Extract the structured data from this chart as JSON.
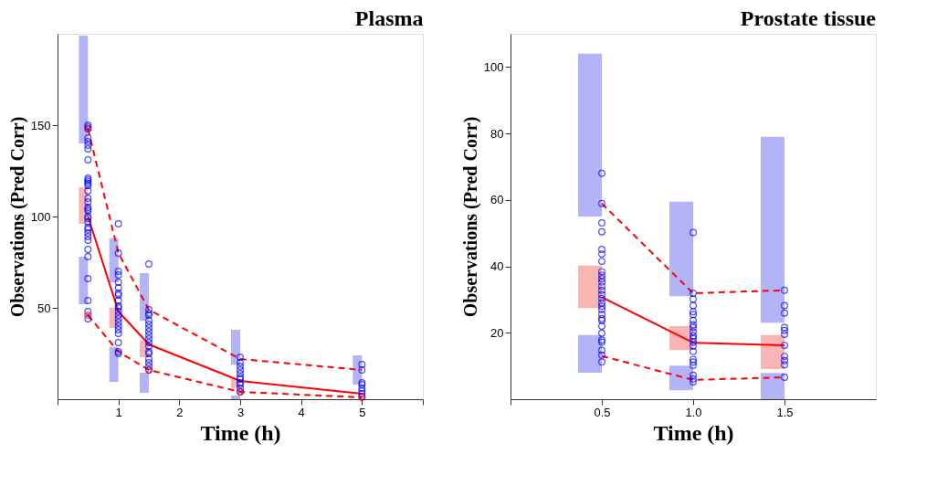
{
  "chart_data": [
    {
      "type": "line",
      "title": "Plasma",
      "xlabel": "Time (h)",
      "ylabel": "Observations (Pred Corr)",
      "xlim": [
        0,
        6
      ],
      "ylim": [
        0,
        200
      ],
      "xticks": [
        {
          "value": 0,
          "label": null
        },
        1,
        2,
        3,
        4,
        5,
        {
          "value": 6,
          "label": null
        }
      ],
      "yticks": [
        50,
        100,
        150
      ],
      "grid": false,
      "series": [
        {
          "type": "bar",
          "color": "#b3b3f8",
          "x": [
            0.5,
            1,
            1.5,
            3,
            5
          ],
          "base": [
            140,
            64,
            43,
            19,
            8
          ],
          "values": [
            59,
            24,
            26,
            19,
            16
          ]
        },
        {
          "type": "bar",
          "color": "#b3b3f8",
          "x": [
            0.5,
            1,
            1.5,
            3
          ],
          "base": [
            52,
            9.5,
            3.5,
            0
          ],
          "values": [
            26,
            19,
            11,
            2
          ]
        },
        {
          "type": "bar",
          "color": "#f9b4b4",
          "x": [
            0.5,
            1,
            1.5,
            3
          ],
          "base": [
            96,
            39,
            23,
            6
          ],
          "values": [
            20,
            11,
            9,
            5
          ]
        },
        {
          "color": "#ff0000",
          "line_style": "solid",
          "marker": "none",
          "x": [
            0.5,
            1,
            1.5,
            3,
            5
          ],
          "values": [
            100,
            48,
            30,
            10,
            3
          ]
        },
        {
          "color": "#ff0000",
          "line_style": "dashed",
          "marker": "none",
          "x": [
            0.5,
            1,
            1.5,
            3,
            5
          ],
          "values": [
            148,
            80,
            49,
            22,
            16
          ]
        },
        {
          "color": "#ff0000",
          "line_style": "dashed",
          "marker": "none",
          "x": [
            0.5,
            1,
            1.5,
            3,
            5
          ],
          "values": [
            46,
            26,
            16,
            4,
            1
          ]
        },
        {
          "type": "scatter",
          "color": "#0000ff",
          "marker": "circle",
          "x": [
            0.5,
            0.5,
            0.5,
            0.5,
            0.5,
            0.5,
            0.5,
            0.5,
            0.5,
            0.5,
            0.5,
            0.5,
            0.5,
            0.5,
            0.5,
            0.5,
            0.5,
            0.5,
            0.5,
            0.5,
            0.5,
            0.5,
            0.5,
            0.5,
            0.5,
            0.5,
            0.5,
            0.5,
            0.5,
            0.5,
            0.5,
            0.5,
            0.5,
            1,
            1,
            1,
            1,
            1,
            1,
            1,
            1,
            1,
            1,
            1,
            1,
            1,
            1,
            1,
            1,
            1,
            1,
            1,
            1,
            1,
            1.5,
            1.5,
            1.5,
            1.5,
            1.5,
            1.5,
            1.5,
            1.5,
            1.5,
            1.5,
            1.5,
            1.5,
            1.5,
            1.5,
            1.5,
            1.5,
            1.5,
            1.5,
            3,
            3,
            3,
            3,
            3,
            3,
            3,
            3,
            3,
            3,
            3,
            5,
            5,
            5,
            5,
            5,
            5,
            5,
            5
          ],
          "values": [
            150,
            149,
            148,
            143,
            141,
            139,
            137,
            131,
            121,
            120,
            119,
            118,
            117,
            114,
            110,
            108,
            105,
            104,
            103,
            100,
            99,
            97,
            94,
            93,
            91,
            89,
            87,
            82,
            78,
            66,
            54,
            48,
            44,
            96,
            80,
            70,
            68,
            64,
            61,
            58,
            57,
            54,
            51,
            50,
            48,
            46,
            44,
            42,
            40,
            38,
            36,
            31,
            26,
            25,
            74,
            49,
            47,
            46,
            43,
            41,
            39,
            37,
            35,
            33,
            31,
            29,
            26,
            25,
            22,
            20,
            18,
            16,
            23,
            20,
            18,
            16,
            14,
            12,
            11,
            9,
            8,
            6,
            4,
            19,
            16,
            9,
            8,
            6,
            4.5,
            3,
            1.5
          ]
        },
        {
          "type": "scatter",
          "color": "#ff0000",
          "marker": "cross",
          "x": [
            0.5,
            0.5,
            1.5,
            3,
            5
          ],
          "values": [
            148,
            46,
            16,
            4,
            1
          ]
        }
      ]
    },
    {
      "type": "line",
      "title": "Prostate tissue",
      "xlabel": "Time (h)",
      "ylabel": "Observations (Pred Corr)",
      "xlim": [
        0,
        2
      ],
      "ylim": [
        0,
        110
      ],
      "xticks": [
        {
          "value": 0,
          "label": null
        },
        0.5,
        {
          "value": 1,
          "label": "1.0"
        },
        1.5
      ],
      "yticks": [
        20,
        40,
        60,
        80,
        100
      ],
      "grid": false,
      "series": [
        {
          "type": "bar",
          "color": "#b3b3f8",
          "x": [
            0.5,
            1,
            1.5
          ],
          "base": [
            55,
            31,
            23
          ],
          "values": [
            49,
            28.5,
            56
          ]
        },
        {
          "type": "bar",
          "color": "#b3b3f8",
          "x": [
            0.5,
            1,
            1.5
          ],
          "base": [
            8,
            2.7,
            0
          ],
          "values": [
            11.3,
            7.4,
            7.9
          ]
        },
        {
          "type": "bar",
          "color": "#f9b4b4",
          "x": [
            0.5,
            1,
            1.5
          ],
          "base": [
            27.4,
            14.8,
            9.1
          ],
          "values": [
            12.8,
            7.2,
            10.2
          ]
        },
        {
          "color": "#ff0000",
          "line_style": "solid",
          "marker": "none",
          "x": [
            0.5,
            1,
            1.5
          ],
          "values": [
            30.7,
            17,
            16.2
          ]
        },
        {
          "color": "#ff0000",
          "line_style": "dashed",
          "marker": "none",
          "x": [
            0.5,
            1,
            1.5
          ],
          "values": [
            58.9,
            31.9,
            32.8
          ]
        },
        {
          "color": "#ff0000",
          "line_style": "dashed",
          "marker": "none",
          "x": [
            0.5,
            1,
            1.5
          ],
          "values": [
            13,
            5.8,
            6.6
          ]
        },
        {
          "type": "scatter",
          "color": "#0000ff",
          "marker": "circle",
          "x": [
            0.5,
            0.5,
            0.5,
            0.5,
            0.5,
            0.5,
            0.5,
            0.5,
            0.5,
            0.5,
            0.5,
            0.5,
            0.5,
            0.5,
            0.5,
            0.5,
            0.5,
            0.5,
            0.5,
            0.5,
            0.5,
            0.5,
            0.5,
            0.5,
            0.5,
            0.5,
            0.5,
            0.5,
            1,
            1,
            1,
            1,
            1,
            1,
            1,
            1,
            1,
            1,
            1,
            1,
            1,
            1,
            1,
            1,
            1,
            1,
            1,
            1,
            1,
            1.5,
            1.5,
            1.5,
            1.5,
            1.5,
            1.5,
            1.5,
            1.5,
            1.5,
            1.5,
            1.5
          ],
          "values": [
            68,
            58.9,
            53.1,
            50.4,
            45.1,
            43.7,
            41.5,
            38.4,
            37.3,
            36.3,
            35.3,
            34,
            32.8,
            31.5,
            30.3,
            29,
            28,
            27,
            25.5,
            24.3,
            23.7,
            22,
            19.9,
            17.8,
            17.2,
            14.7,
            13.3,
            11.2,
            50.2,
            31.9,
            30.1,
            28.2,
            26.3,
            25.5,
            23.7,
            22.4,
            21.6,
            20.3,
            19.1,
            18.3,
            17.2,
            16,
            14.4,
            12,
            11.2,
            10.2,
            7.2,
            6.1,
            5.2,
            32.8,
            28.2,
            25.9,
            21.6,
            20.7,
            19.5,
            16.2,
            12.9,
            11.6,
            10.4,
            6.6
          ]
        }
      ]
    }
  ]
}
